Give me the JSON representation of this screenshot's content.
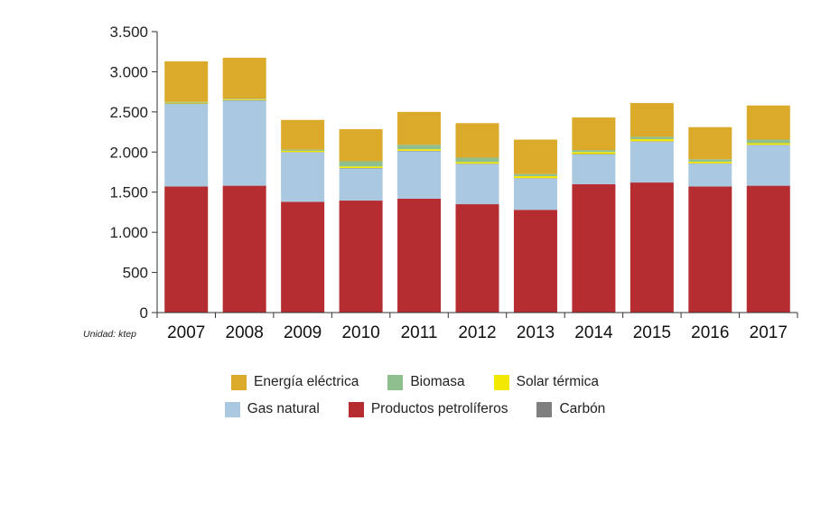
{
  "chart_data": {
    "type": "bar",
    "stacked": true,
    "title": "",
    "xlabel": "",
    "ylabel": "",
    "unit_note": "Unidad: ktep",
    "ylim": [
      0,
      3500
    ],
    "yticks": [
      0,
      500,
      1000,
      1500,
      2000,
      2500,
      3000,
      3500
    ],
    "ytick_labels": [
      "0",
      "500",
      "1.000",
      "1.500",
      "2.000",
      "2.500",
      "3.000",
      "3.500"
    ],
    "categories": [
      "2007",
      "2008",
      "2009",
      "2010",
      "2011",
      "2012",
      "2013",
      "2014",
      "2015",
      "2016",
      "2017"
    ],
    "series": [
      {
        "name": "Productos petrolíferos",
        "color": "#b52d30",
        "values": [
          1570,
          1580,
          1380,
          1395,
          1420,
          1350,
          1280,
          1600,
          1620,
          1570,
          1580
        ]
      },
      {
        "name": "Gas natural",
        "color": "#aac8df",
        "values": [
          1030,
          1060,
          615,
          400,
          590,
          500,
          390,
          370,
          510,
          285,
          505
        ]
      },
      {
        "name": "Carbón",
        "color": "#7f7f7f",
        "values": [
          5,
          5,
          5,
          5,
          5,
          5,
          5,
          5,
          5,
          5,
          5
        ]
      },
      {
        "name": "Solar térmica",
        "color": "#f3e800",
        "values": [
          10,
          10,
          15,
          20,
          20,
          20,
          25,
          25,
          25,
          20,
          20
        ]
      },
      {
        "name": "Biomasa",
        "color": "#8fbf8f",
        "values": [
          10,
          10,
          15,
          65,
          55,
          55,
          25,
          25,
          30,
          30,
          45
        ]
      },
      {
        "name": "Energía eléctrica",
        "color": "#dcaa2a",
        "values": [
          505,
          510,
          370,
          400,
          410,
          430,
          430,
          405,
          420,
          400,
          425
        ]
      }
    ],
    "legend_rows": [
      [
        "Energía eléctrica",
        "Biomasa",
        "Solar térmica"
      ],
      [
        "Gas natural",
        "Productos petrolíferos",
        "Carbón"
      ]
    ]
  }
}
